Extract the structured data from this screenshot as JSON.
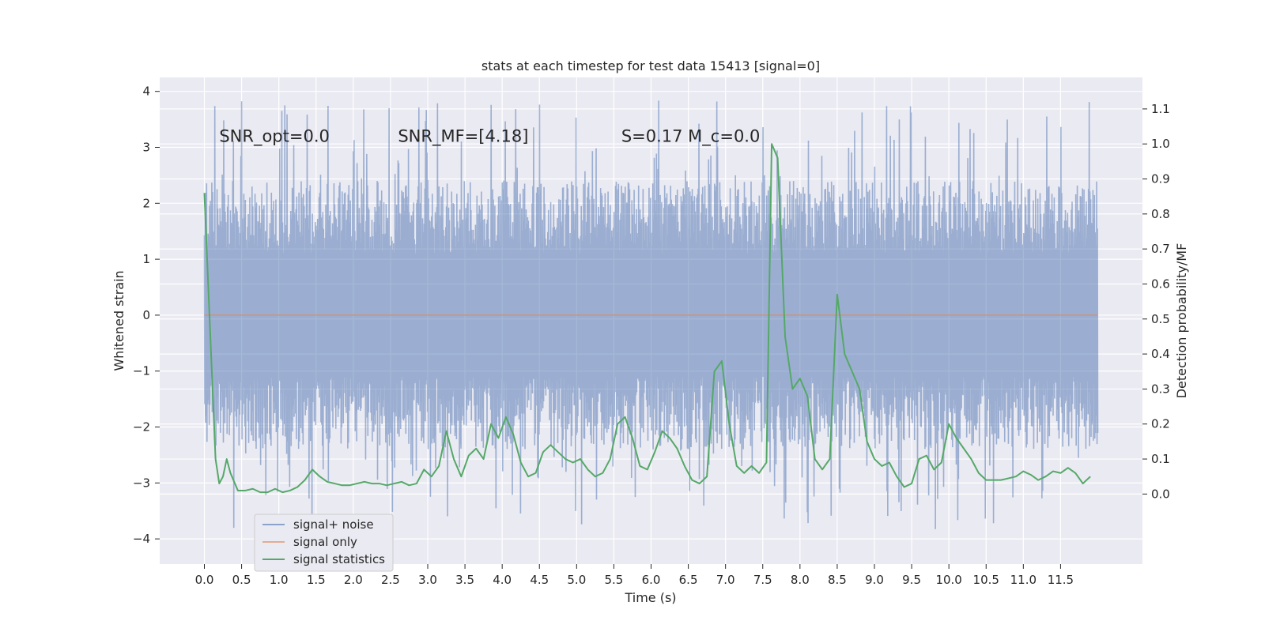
{
  "chart_data": {
    "type": "line",
    "title": "stats at each timestep for test data 15413 [signal=0]",
    "xlabel": "Time (s)",
    "ylabel_left": "Whitened strain",
    "ylabel_right": "Detection probability/MF",
    "xlim": [
      -0.6,
      12.6
    ],
    "ylim_left": [
      -4.45,
      4.25
    ],
    "ylim_right": [
      -0.2,
      1.19
    ],
    "x_ticks": [
      0.0,
      0.5,
      1.0,
      1.5,
      2.0,
      2.5,
      3.0,
      3.5,
      4.0,
      4.5,
      5.0,
      5.5,
      6.0,
      6.5,
      7.0,
      7.5,
      8.0,
      8.5,
      9.0,
      9.5,
      10.0,
      10.5,
      11.0,
      11.5
    ],
    "x_tick_labels": [
      "0.0",
      "0.5",
      "1.0",
      "1.5",
      "2.0",
      "2.5",
      "3.0",
      "3.5",
      "4.0",
      "4.5",
      "5.0",
      "5.5",
      "6.0",
      "6.5",
      "7.0",
      "7.5",
      "8.0",
      "8.5",
      "9.0",
      "9.5",
      "10.0",
      "10.5",
      "11.0",
      "11.5"
    ],
    "y_left_ticks": [
      -4,
      -3,
      -2,
      -1,
      0,
      1,
      2,
      3,
      4
    ],
    "y_left_tick_labels": [
      "−4",
      "−3",
      "−2",
      "−1",
      "0",
      "1",
      "2",
      "3",
      "4"
    ],
    "y_right_ticks": [
      0.0,
      0.1,
      0.2,
      0.3,
      0.4,
      0.5,
      0.6,
      0.7,
      0.8,
      0.9,
      1.0,
      1.1
    ],
    "y_right_tick_labels": [
      "0.0",
      "0.1",
      "0.2",
      "0.3",
      "0.4",
      "0.5",
      "0.6",
      "0.7",
      "0.8",
      "0.9",
      "1.0",
      "1.1"
    ],
    "grid": true,
    "legend_position": "lower-left",
    "annotations": [
      {
        "text": "SNR_opt=0.0",
        "x": 0.2,
        "y": 3.1
      },
      {
        "text": "SNR_MF=[4.18]",
        "x": 2.6,
        "y": 3.1
      },
      {
        "text": "S=0.17   M_c=0.0",
        "x": 5.6,
        "y": 3.1
      }
    ],
    "series": [
      {
        "name": "signal+ noise",
        "axis": "left",
        "color": "#4c72b0",
        "opacity": 0.5,
        "render": "noise",
        "x_start": 0.0,
        "x_end": 12.0,
        "n_points": 2400,
        "envelope": {
          "typical_min": -1.8,
          "typical_max": 1.8,
          "observed_min": -4.05,
          "observed_max": 3.85
        }
      },
      {
        "name": "signal only",
        "axis": "left",
        "color": "#dd8452",
        "x": [
          0.0,
          12.0
        ],
        "y": [
          0.0,
          0.0
        ]
      },
      {
        "name": "signal statistics",
        "axis": "right",
        "color": "#55a868",
        "x": [
          0.0,
          0.1,
          0.15,
          0.2,
          0.25,
          0.3,
          0.35,
          0.45,
          0.55,
          0.65,
          0.75,
          0.85,
          0.95,
          1.05,
          1.15,
          1.25,
          1.35,
          1.45,
          1.55,
          1.65,
          1.75,
          1.85,
          1.95,
          2.05,
          2.15,
          2.25,
          2.35,
          2.45,
          2.55,
          2.65,
          2.75,
          2.85,
          2.95,
          3.05,
          3.15,
          3.25,
          3.35,
          3.45,
          3.55,
          3.65,
          3.75,
          3.85,
          3.95,
          4.05,
          4.15,
          4.25,
          4.35,
          4.45,
          4.55,
          4.65,
          4.75,
          4.85,
          4.95,
          5.05,
          5.15,
          5.25,
          5.35,
          5.45,
          5.55,
          5.65,
          5.75,
          5.85,
          5.95,
          6.05,
          6.15,
          6.25,
          6.35,
          6.45,
          6.55,
          6.65,
          6.75,
          6.85,
          6.95,
          7.05,
          7.15,
          7.25,
          7.35,
          7.45,
          7.55,
          7.62,
          7.7,
          7.8,
          7.9,
          8.0,
          8.1,
          8.2,
          8.3,
          8.4,
          8.5,
          8.6,
          8.7,
          8.8,
          8.9,
          9.0,
          9.1,
          9.2,
          9.3,
          9.4,
          9.5,
          9.6,
          9.7,
          9.8,
          9.9,
          10.0,
          10.1,
          10.2,
          10.3,
          10.4,
          10.5,
          10.6,
          10.7,
          10.8,
          10.9,
          11.0,
          11.1,
          11.2,
          11.3,
          11.4,
          11.5,
          11.6,
          11.7,
          11.8,
          11.9
        ],
        "y": [
          0.86,
          0.35,
          0.1,
          0.03,
          0.05,
          0.1,
          0.06,
          0.01,
          0.01,
          0.015,
          0.005,
          0.005,
          0.015,
          0.005,
          0.01,
          0.02,
          0.04,
          0.07,
          0.05,
          0.035,
          0.03,
          0.025,
          0.025,
          0.03,
          0.035,
          0.03,
          0.03,
          0.025,
          0.03,
          0.035,
          0.025,
          0.03,
          0.07,
          0.05,
          0.08,
          0.18,
          0.1,
          0.05,
          0.11,
          0.13,
          0.1,
          0.2,
          0.16,
          0.22,
          0.17,
          0.09,
          0.05,
          0.06,
          0.12,
          0.14,
          0.12,
          0.1,
          0.09,
          0.1,
          0.07,
          0.05,
          0.06,
          0.1,
          0.2,
          0.22,
          0.16,
          0.08,
          0.07,
          0.12,
          0.18,
          0.16,
          0.13,
          0.08,
          0.04,
          0.03,
          0.05,
          0.35,
          0.38,
          0.2,
          0.08,
          0.06,
          0.08,
          0.06,
          0.09,
          1.0,
          0.96,
          0.45,
          0.3,
          0.33,
          0.28,
          0.1,
          0.07,
          0.1,
          0.57,
          0.4,
          0.35,
          0.3,
          0.15,
          0.1,
          0.08,
          0.09,
          0.05,
          0.02,
          0.03,
          0.1,
          0.11,
          0.07,
          0.09,
          0.2,
          0.16,
          0.13,
          0.1,
          0.06,
          0.04,
          0.04,
          0.04,
          0.045,
          0.05,
          0.065,
          0.055,
          0.04,
          0.05,
          0.065,
          0.06,
          0.075,
          0.06,
          0.03,
          0.05
        ]
      }
    ]
  }
}
